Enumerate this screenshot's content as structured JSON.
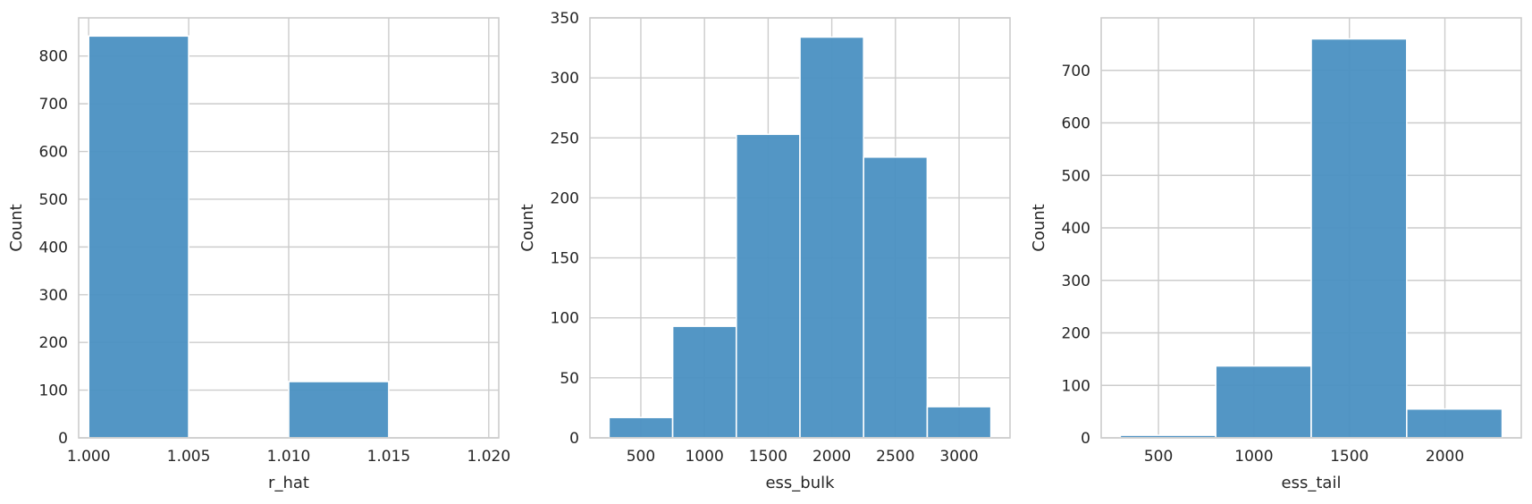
{
  "chart_data": [
    {
      "type": "bar",
      "subtype": "histogram",
      "xlabel": "r_hat",
      "ylabel": "Count",
      "xlim": [
        0.9995,
        1.0205
      ],
      "ylim": [
        0,
        880
      ],
      "xticks": [
        1.0,
        1.005,
        1.01,
        1.015,
        1.02
      ],
      "xtick_labels": [
        "1.000",
        "1.005",
        "1.010",
        "1.015",
        "1.020"
      ],
      "yticks": [
        0,
        100,
        200,
        300,
        400,
        500,
        600,
        700,
        800
      ],
      "ytick_labels": [
        "0",
        "100",
        "200",
        "300",
        "400",
        "500",
        "600",
        "700",
        "800"
      ],
      "bins": [
        {
          "x0": 1.0,
          "x1": 1.005,
          "count": 842
        },
        {
          "x0": 1.005,
          "x1": 1.01,
          "count": 0
        },
        {
          "x0": 1.01,
          "x1": 1.015,
          "count": 118
        },
        {
          "x0": 1.015,
          "x1": 1.02,
          "count": 0
        }
      ],
      "grid": true,
      "bar_color": "#4a90c2"
    },
    {
      "type": "bar",
      "subtype": "histogram",
      "xlabel": "ess_bulk",
      "ylabel": "Count",
      "xlim": [
        100,
        3400
      ],
      "ylim": [
        0,
        350
      ],
      "xticks": [
        500,
        1000,
        1500,
        2000,
        2500,
        3000
      ],
      "xtick_labels": [
        "500",
        "1000",
        "1500",
        "2000",
        "2500",
        "3000"
      ],
      "yticks": [
        0,
        50,
        100,
        150,
        200,
        250,
        300,
        350
      ],
      "ytick_labels": [
        "0",
        "50",
        "100",
        "150",
        "200",
        "250",
        "300",
        "350"
      ],
      "bins": [
        {
          "x0": 250,
          "x1": 750,
          "count": 17
        },
        {
          "x0": 750,
          "x1": 1250,
          "count": 93
        },
        {
          "x0": 1250,
          "x1": 1750,
          "count": 253
        },
        {
          "x0": 1750,
          "x1": 2250,
          "count": 334
        },
        {
          "x0": 2250,
          "x1": 2750,
          "count": 234
        },
        {
          "x0": 2750,
          "x1": 3250,
          "count": 26
        }
      ],
      "grid": true,
      "bar_color": "#4a90c2"
    },
    {
      "type": "bar",
      "subtype": "histogram",
      "xlabel": "ess_tail",
      "ylabel": "Count",
      "xlim": [
        200,
        2400
      ],
      "ylim": [
        0,
        800
      ],
      "xticks": [
        500,
        1000,
        1500,
        2000
      ],
      "xtick_labels": [
        "500",
        "1000",
        "1500",
        "2000"
      ],
      "yticks": [
        0,
        100,
        200,
        300,
        400,
        500,
        600,
        700
      ],
      "ytick_labels": [
        "0",
        "100",
        "200",
        "300",
        "400",
        "500",
        "600",
        "700"
      ],
      "bins": [
        {
          "x0": 300,
          "x1": 800,
          "count": 5
        },
        {
          "x0": 800,
          "x1": 1300,
          "count": 137
        },
        {
          "x0": 1300,
          "x1": 1800,
          "count": 760
        },
        {
          "x0": 1800,
          "x1": 2300,
          "count": 55
        }
      ],
      "grid": true,
      "bar_color": "#4a90c2"
    }
  ]
}
